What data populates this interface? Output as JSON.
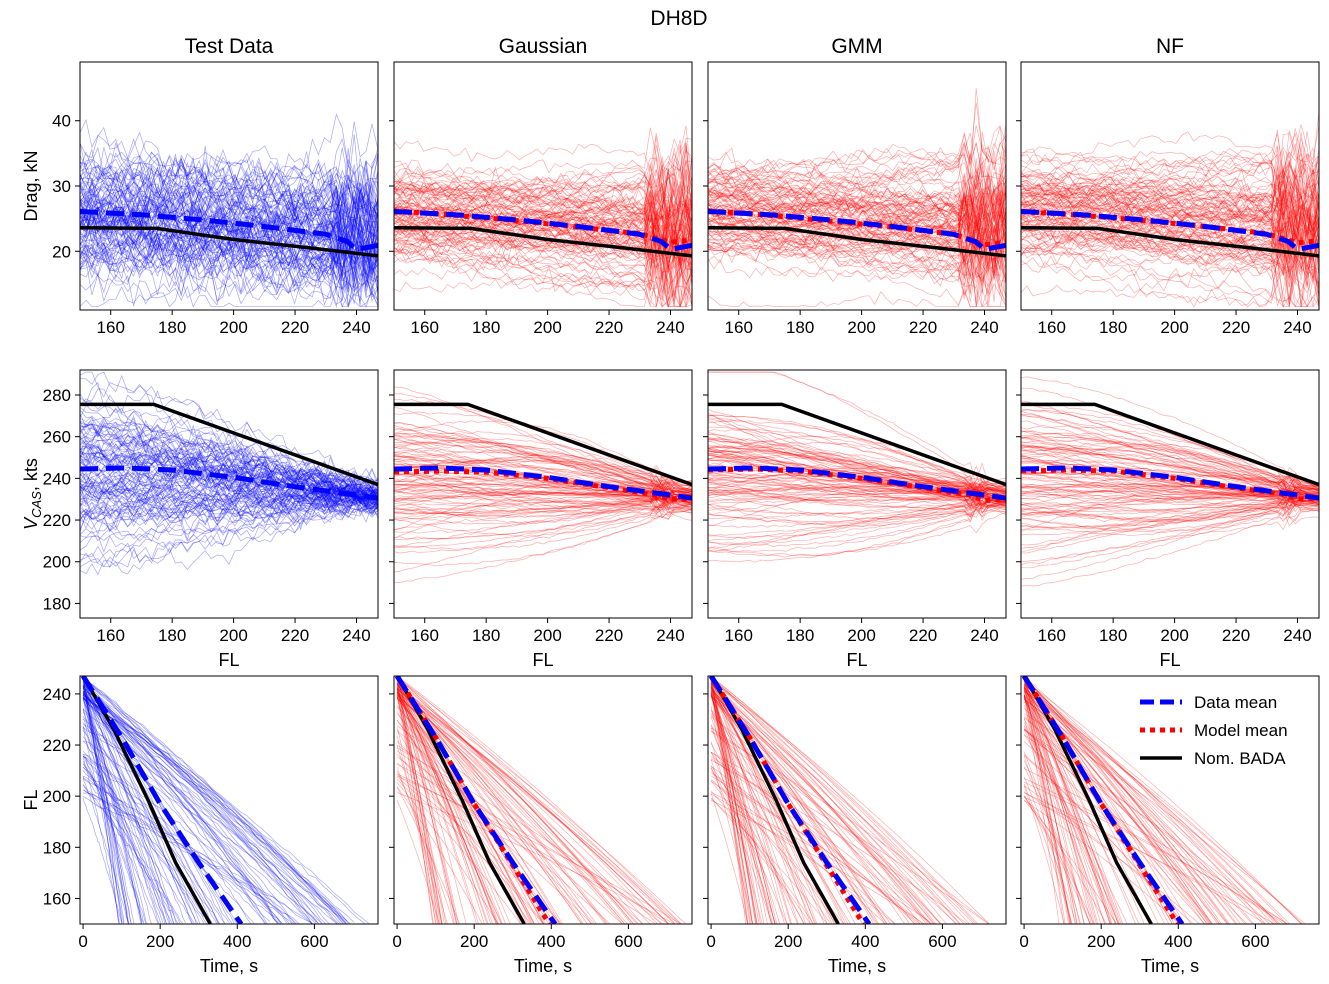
{
  "chart_data": {
    "type": "line",
    "title": "DH8D",
    "columns": [
      "Test Data",
      "Gaussian",
      "GMM",
      "NF"
    ],
    "colors": {
      "test_samples": "#0000ff",
      "model_samples": "#ff0000",
      "data_mean": "#0000ff",
      "model_mean": "#ff0000",
      "nominal": "#000000"
    },
    "legend": {
      "position": "top-right of bottom-right panel",
      "entries": [
        {
          "label": "Data mean",
          "style": "dashed",
          "color": "#0000ff"
        },
        {
          "label": "Model mean",
          "style": "dotted",
          "color": "#ff0000"
        },
        {
          "label": "Nom. BADA",
          "style": "solid",
          "color": "#000000"
        }
      ]
    },
    "rows": [
      {
        "name": "drag",
        "ylabel": "Drag, kN",
        "xlabel": "",
        "xlim": [
          150,
          247
        ],
        "ylim": [
          11,
          49
        ],
        "xticks": [
          "160",
          "180",
          "200",
          "220",
          "240"
        ],
        "xtick_values": [
          160,
          180,
          200,
          220,
          240
        ],
        "yticks": [
          "20",
          "30",
          "40"
        ],
        "ytick_values": [
          20,
          30,
          40
        ],
        "nominal": {
          "x": [
            150,
            175,
            200,
            225,
            247
          ],
          "y": [
            23.6,
            23.5,
            21.8,
            20.5,
            19.3
          ]
        },
        "data_mean": {
          "x": [
            150,
            170,
            190,
            210,
            230,
            237,
            240,
            247
          ],
          "y": [
            26.1,
            25.6,
            24.8,
            23.8,
            22.6,
            21.5,
            20.3,
            20.9
          ]
        },
        "model_means": [
          {
            "x": [
              150,
              170,
              190,
              210,
              230,
              240,
              247
            ],
            "y": [
              26.2,
              25.5,
              24.7,
              23.7,
              22.7,
              21.4,
              21.7
            ]
          },
          {
            "x": [
              150,
              170,
              190,
              210,
              230,
              240,
              247
            ],
            "y": [
              26.2,
              25.5,
              24.6,
              23.7,
              22.6,
              21.0,
              21.3
            ]
          },
          {
            "x": [
              150,
              170,
              190,
              210,
              230,
              240,
              247
            ],
            "y": [
              26.1,
              25.5,
              24.7,
              23.8,
              22.7,
              21.3,
              21.6
            ]
          }
        ],
        "samples": {
          "count": 110,
          "spread": "approx. 12 to 47 kN, thin translucent lines"
        }
      },
      {
        "name": "vcas",
        "ylabel": "V_CAS, kts",
        "ylabel_main": "V",
        "ylabel_sub": "CAS",
        "ylabel_rest": ", kts",
        "xlabel": "FL",
        "xlim": [
          150,
          247
        ],
        "ylim": [
          173,
          292
        ],
        "xticks": [
          "160",
          "180",
          "200",
          "220",
          "240"
        ],
        "xtick_values": [
          160,
          180,
          200,
          220,
          240
        ],
        "yticks": [
          "180",
          "200",
          "220",
          "240",
          "260",
          "280"
        ],
        "ytick_values": [
          180,
          200,
          220,
          240,
          260,
          280
        ],
        "nominal": {
          "x": [
            150,
            174,
            247
          ],
          "y": [
            275.5,
            275.5,
            237
          ]
        },
        "data_mean": {
          "x": [
            150,
            165,
            180,
            200,
            220,
            240,
            247
          ],
          "y": [
            244.5,
            245,
            244,
            240.5,
            236,
            232,
            230.5
          ]
        },
        "model_means": [
          {
            "x": [
              150,
              165,
              180,
              200,
              220,
              235,
              240,
              247
            ],
            "y": [
              243,
              243.5,
              243,
              240,
              235.5,
              232,
              230,
              230
            ]
          },
          {
            "x": [
              150,
              165,
              180,
              200,
              220,
              235,
              240,
              247
            ],
            "y": [
              244,
              244.5,
              243.5,
              240,
              235.5,
              232,
              229.5,
              230
            ]
          },
          {
            "x": [
              150,
              165,
              180,
              200,
              220,
              235,
              240,
              247
            ],
            "y": [
              243.5,
              244,
              243.5,
              240,
              235.5,
              232.5,
              230,
              230.5
            ]
          }
        ],
        "samples": {
          "count": 110,
          "spread": "approx. 180 to 288 kts, converging near 230 kts at FL 247"
        }
      },
      {
        "name": "fl_time",
        "ylabel": "FL",
        "xlabel": "Time, s",
        "xlim": [
          -8,
          765
        ],
        "ylim": [
          150,
          247
        ],
        "xticks": [
          "0",
          "200",
          "400",
          "600"
        ],
        "xtick_values": [
          0,
          200,
          400,
          600
        ],
        "yticks": [
          "160",
          "180",
          "200",
          "220",
          "240"
        ],
        "ytick_values": [
          160,
          180,
          200,
          220,
          240
        ],
        "nominal": {
          "x": [
            0,
            80,
            170,
            240,
            330
          ],
          "y": [
            247,
            226,
            198,
            174,
            150
          ]
        },
        "data_mean": {
          "x": [
            0,
            100,
            200,
            300,
            410
          ],
          "y": [
            247,
            223,
            197,
            174,
            150
          ]
        },
        "model_means": [
          {
            "x": [
              0,
              100,
              200,
              300,
              395
            ],
            "y": [
              247,
              223,
              197,
              173,
              150
            ]
          },
          {
            "x": [
              0,
              100,
              200,
              300,
              395
            ],
            "y": [
              247,
              223,
              197,
              173,
              150
            ]
          },
          {
            "x": [
              0,
              100,
              200,
              300,
              398
            ],
            "y": [
              247,
              223,
              197,
              173,
              150
            ]
          }
        ],
        "samples": {
          "count": 110,
          "spread": "descents from FL 198-247 reaching FL 150 between about 90 and 760 s"
        }
      }
    ]
  }
}
